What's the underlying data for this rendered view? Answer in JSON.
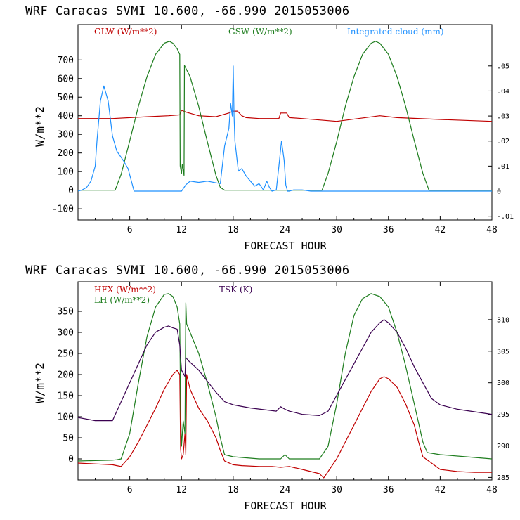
{
  "colors": {
    "red": "#c00000",
    "green": "#1e7d1e",
    "blue": "#1e90ff",
    "purple": "#3a0050"
  },
  "chart_data": [
    {
      "type": "line",
      "title": "WRF  Caracas SVMI  10.600, -66.990  2015053006",
      "xlabel": "FORECAST HOUR",
      "ylabel": "W/m**2",
      "xlim": [
        0,
        48
      ],
      "ylim": [
        -160,
        890
      ],
      "y2lim": [
        -0.0115,
        0.0665
      ],
      "xticks": [
        "6",
        "12",
        "18",
        "24",
        "30",
        "36",
        "42",
        "48"
      ],
      "yticks": [
        "-100",
        "0",
        "100",
        "200",
        "300",
        "400",
        "500",
        "600",
        "700"
      ],
      "y2ticks": [
        "-.01",
        "0",
        ".01",
        ".02",
        ".03",
        ".04",
        ".05"
      ],
      "series": [
        {
          "name": "GLW (W/m**2)",
          "color": "red",
          "axis": "left",
          "x": [
            0,
            4,
            8,
            10.5,
            11.8,
            12.0,
            12.5,
            14,
            16,
            17.5,
            18.0,
            18.5,
            19,
            19.5,
            21,
            23.3,
            23.5,
            24.2,
            24.5,
            26,
            30,
            35,
            37,
            42,
            48
          ],
          "y": [
            385,
            385,
            395,
            400,
            405,
            430,
            420,
            400,
            395,
            415,
            425,
            425,
            400,
            390,
            385,
            385,
            415,
            415,
            390,
            385,
            370,
            400,
            390,
            380,
            370
          ]
        },
        {
          "name": "GSW (W/m**2)",
          "color": "green",
          "axis": "left",
          "x": [
            0,
            4.3,
            5,
            6,
            7,
            8,
            9,
            10,
            10.6,
            11,
            11.5,
            11.8,
            11.85,
            12.0,
            12.1,
            12.3,
            12.35,
            13,
            14,
            15,
            16,
            16.5,
            17,
            28.3,
            29,
            30,
            31,
            32,
            33,
            34,
            34.5,
            35,
            36,
            37,
            38,
            39,
            40,
            40.7,
            48
          ],
          "y": [
            0,
            0,
            85,
            265,
            450,
            610,
            730,
            790,
            800,
            790,
            760,
            730,
            130,
            90,
            140,
            80,
            670,
            610,
            450,
            260,
            80,
            15,
            0,
            0,
            90,
            260,
            450,
            610,
            730,
            790,
            800,
            790,
            730,
            610,
            450,
            265,
            90,
            0,
            0
          ]
        },
        {
          "name": "Integrated cloud (mm)",
          "color": "blue",
          "axis": "right",
          "x": [
            0,
            0.5,
            1,
            1.5,
            2,
            2.2,
            2.6,
            3,
            3.5,
            4,
            4.5,
            5,
            5.3,
            5.8,
            6.5,
            12,
            12.5,
            13,
            14,
            15,
            16.5,
            17,
            17.5,
            17.7,
            17.9,
            18.0,
            18.1,
            18.2,
            18.6,
            19,
            19.5,
            20,
            20.5,
            21,
            21.5,
            21.9,
            22.2,
            22.5,
            23,
            23.3,
            23.6,
            23.9,
            24.1,
            24.3,
            24.5,
            25,
            26,
            27,
            48
          ],
          "y": [
            0,
            0.0005,
            0.0015,
            0.004,
            0.01,
            0.02,
            0.036,
            0.042,
            0.036,
            0.022,
            0.016,
            0.0135,
            0.012,
            0.009,
            0,
            0,
            0.0025,
            0.004,
            0.0035,
            0.004,
            0.003,
            0.018,
            0.025,
            0.035,
            0.03,
            0.05,
            0.03,
            0.02,
            0.008,
            0.009,
            0.006,
            0.004,
            0.002,
            0.003,
            0.0005,
            0.004,
            0.0015,
            0,
            0.0005,
            0.01,
            0.02,
            0.0125,
            0.0025,
            0,
            0,
            0.0005,
            0.0005,
            0,
            0
          ]
        }
      ]
    },
    {
      "type": "line",
      "title": "WRF  Caracas SVMI  10.600, -66.990  2015053006",
      "xlabel": "FORECAST HOUR",
      "ylabel": "W/m**2",
      "xlim": [
        0,
        48
      ],
      "ylim": [
        -50,
        420
      ],
      "y2lim": [
        284.6,
        316.0
      ],
      "xticks": [
        "6",
        "12",
        "18",
        "24",
        "30",
        "36",
        "42",
        "48"
      ],
      "yticks": [
        "0",
        "50",
        "100",
        "150",
        "200",
        "250",
        "300",
        "350"
      ],
      "y2ticks": [
        "285",
        "290",
        "295",
        "300",
        "305",
        "310"
      ],
      "series": [
        {
          "name": "HFX (W/m**2)",
          "color": "red",
          "axis": "left",
          "x": [
            0,
            2,
            4,
            4.5,
            5,
            6,
            7,
            8,
            9,
            10,
            11,
            11.5,
            11.8,
            11.9,
            12.0,
            12.2,
            12.4,
            12.5,
            12.6,
            13,
            14,
            15,
            16,
            16.5,
            17,
            18,
            19,
            21,
            22.5,
            23.5,
            24.5,
            26,
            28,
            28.5,
            29,
            30,
            31,
            32,
            33,
            34,
            35,
            35.5,
            36,
            37,
            38,
            39,
            39.5,
            40,
            42,
            44,
            46,
            48
          ],
          "y": [
            -10,
            -12,
            -14,
            -16,
            -18,
            5,
            40,
            80,
            120,
            165,
            200,
            210,
            200,
            25,
            0,
            10,
            60,
            10,
            200,
            165,
            120,
            90,
            50,
            20,
            -5,
            -14,
            -16,
            -18,
            -18,
            -20,
            -18,
            -25,
            -35,
            -45,
            -30,
            0,
            40,
            80,
            120,
            160,
            190,
            195,
            190,
            170,
            130,
            80,
            40,
            5,
            -25,
            -30,
            -32,
            -32
          ]
        },
        {
          "name": "LH (W/m**2)",
          "color": "green",
          "axis": "left",
          "x": [
            0,
            2,
            4,
            4.5,
            5,
            6,
            7,
            8,
            9,
            10,
            10.5,
            11,
            11.5,
            11.8,
            11.9,
            12.0,
            12.2,
            12.4,
            12.5,
            12.6,
            13,
            14,
            15,
            16,
            16.5,
            17,
            18,
            21,
            23.5,
            24,
            24.5,
            26,
            28,
            29,
            30,
            31,
            32,
            33,
            34,
            35,
            36,
            37,
            38,
            39,
            40,
            40.5,
            42,
            45,
            48
          ],
          "y": [
            -5,
            -4,
            -3,
            -2,
            0,
            60,
            180,
            290,
            360,
            390,
            392,
            385,
            360,
            320,
            120,
            30,
            90,
            60,
            370,
            320,
            300,
            250,
            180,
            100,
            50,
            10,
            5,
            0,
            0,
            10,
            0,
            0,
            0,
            30,
            130,
            250,
            340,
            380,
            392,
            385,
            360,
            300,
            220,
            130,
            40,
            15,
            10,
            5,
            0
          ]
        },
        {
          "name": "TSK (K)",
          "color": "purple",
          "axis": "right",
          "x": [
            0,
            2,
            4,
            5,
            6,
            7,
            8,
            9,
            10,
            10.5,
            11,
            11.5,
            11.8,
            12.0,
            12.2,
            12.4,
            12.5,
            12.8,
            14,
            16,
            17,
            18,
            20,
            23,
            23.5,
            24,
            24.5,
            26,
            28,
            29,
            30,
            31,
            32,
            33,
            34,
            35,
            35.5,
            36,
            37,
            38,
            39,
            40,
            41,
            42,
            44,
            48
          ],
          "y": [
            294.5,
            294,
            294,
            297,
            300,
            303,
            306,
            308,
            308.8,
            309,
            308.7,
            308.5,
            306,
            302,
            301.5,
            301,
            304,
            303.5,
            302,
            298.5,
            297,
            296.5,
            296,
            295.5,
            296.2,
            295.8,
            295.5,
            295,
            294.8,
            295.5,
            298,
            300.5,
            303,
            305.5,
            308,
            309.5,
            310,
            309.5,
            308,
            305.5,
            302.5,
            300,
            297.5,
            296.5,
            295.8,
            295
          ]
        }
      ]
    }
  ]
}
